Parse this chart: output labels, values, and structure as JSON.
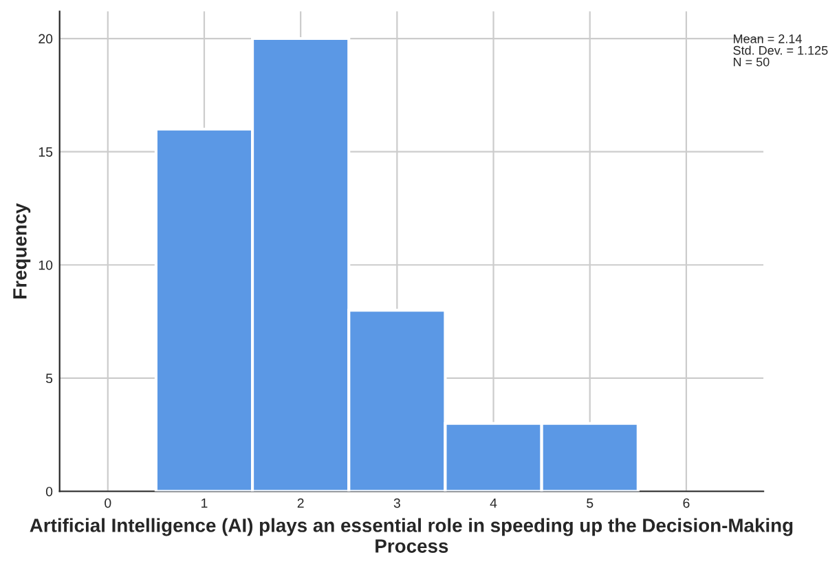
{
  "chart_data": {
    "type": "histogram",
    "xlabel": "Artificial Intelligence (AI) plays an essential role in speeding up the Decision-Making Process",
    "ylabel": "Frequency",
    "bins": [
      0.5,
      1.5,
      2.5,
      3.5,
      4.5,
      5.5
    ],
    "values": [
      16,
      20,
      8,
      3,
      3
    ],
    "color": "#5b98e5",
    "xlim": [
      -0.5,
      6.8
    ],
    "ylim": [
      0,
      21.2
    ],
    "xticks": [
      0,
      1,
      2,
      3,
      4,
      5,
      6
    ],
    "yticks": [
      0,
      5,
      10,
      15,
      20
    ],
    "grid": true,
    "annotations": [
      "Mean = 2.14\nStd. Dev. = 1.125\nN = 50"
    ]
  }
}
